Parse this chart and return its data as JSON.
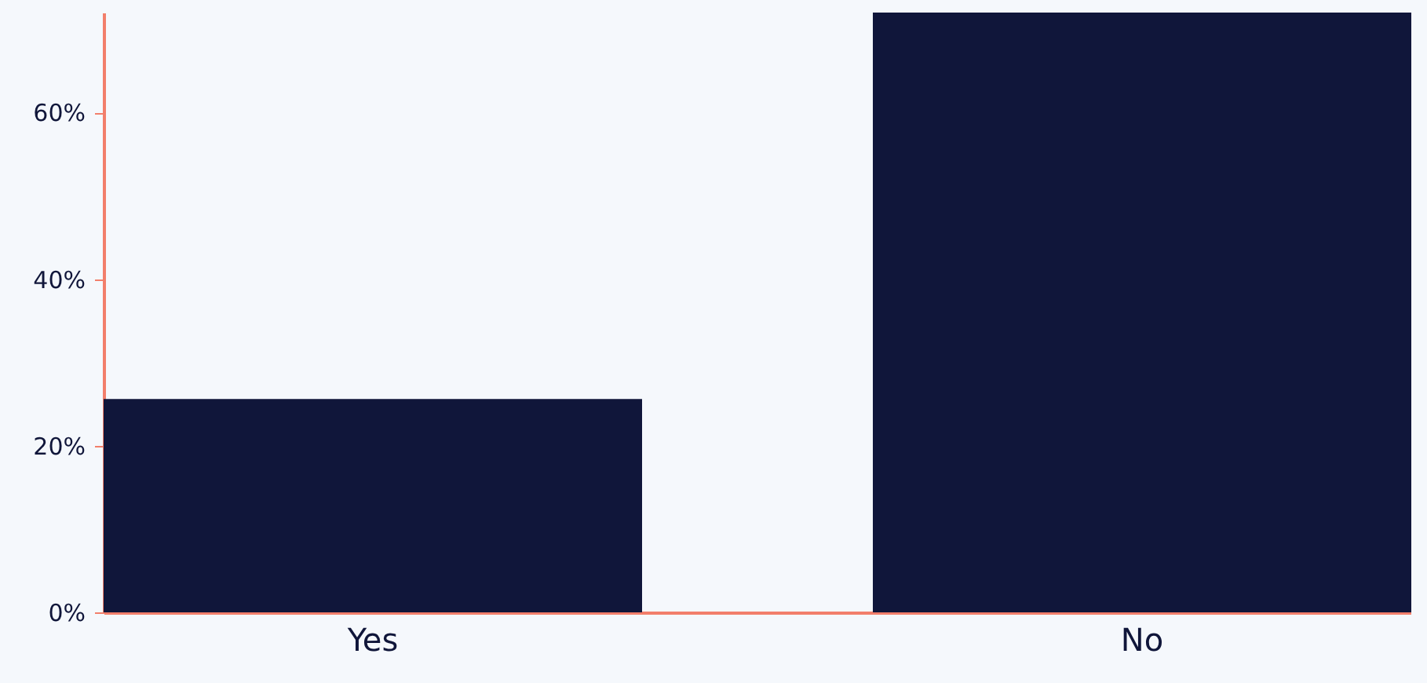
{
  "chart_data": {
    "type": "bar",
    "categories": [
      "Yes",
      "No"
    ],
    "values": [
      25.6,
      72
    ],
    "color": "#10163a",
    "ylim": [
      0,
      72
    ],
    "yticks": [
      {
        "value": 0,
        "label": "0%"
      },
      {
        "value": 20,
        "label": "20%"
      },
      {
        "value": 40,
        "label": "40%"
      },
      {
        "value": 60,
        "label": "60%"
      }
    ],
    "grid": false
  }
}
